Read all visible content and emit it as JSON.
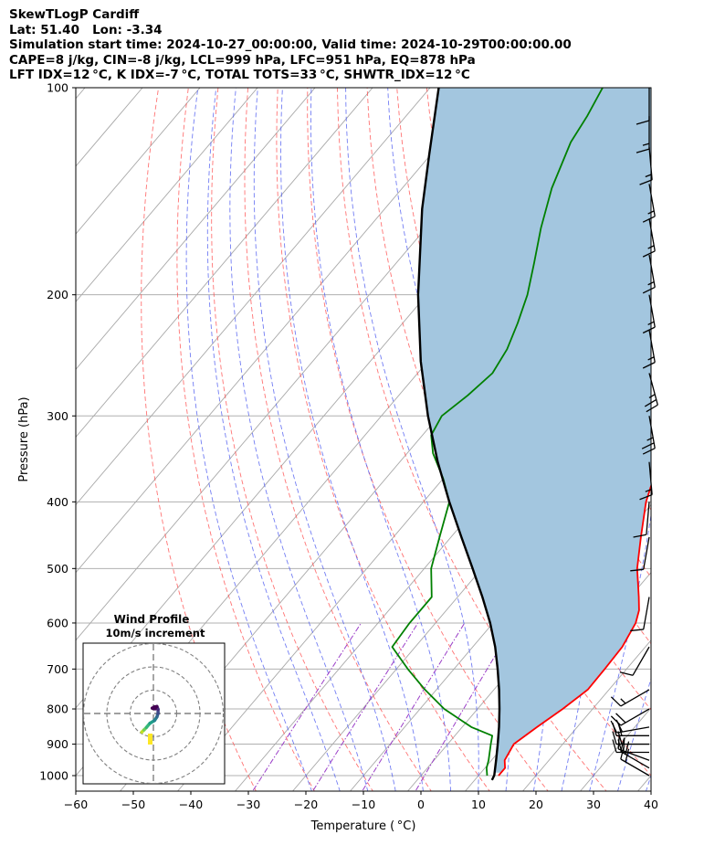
{
  "header": {
    "line1": "SkewTLogP Cardiff",
    "line2": "Lat: 51.40   Lon: -3.34",
    "line3": "Simulation start time: 2024-10-27_00:00:00, Valid time: 2024-10-29T00:00:00.00",
    "line4": "CAPE=8 j/kg, CIN=-8 j/kg, LCL=999 hPa, LFC=951 hPa, EQ=878 hPa",
    "line5": "LFT IDX=12 °C, K IDX=-7 °C, TOTAL TOTS=33 °C, SHWTR_IDX=12 °C"
  },
  "chart_data": {
    "type": "skew-t log-p",
    "xlabel": "Temperature ( °C)",
    "ylabel": "Pressure (hPa)",
    "xlim": [
      -60,
      40
    ],
    "ylim": [
      1050,
      100
    ],
    "x_ticks": [
      "−60",
      "−50",
      "−40",
      "−30",
      "−20",
      "−10",
      "0",
      "10",
      "20",
      "30",
      "40"
    ],
    "y_ticks": [
      1000,
      900,
      800,
      700,
      600,
      500,
      400,
      300,
      200,
      100
    ],
    "grid": true,
    "series": [
      {
        "role": "temperature",
        "color": "#ff0000",
        "points": [
          [
            1000,
            13.5
          ],
          [
            975,
            13.5
          ],
          [
            950,
            12.3
          ],
          [
            900,
            11.5
          ],
          [
            850,
            13.0
          ],
          [
            800,
            14.8
          ],
          [
            750,
            16.3
          ],
          [
            700,
            16.2
          ],
          [
            650,
            16.0
          ],
          [
            600,
            14.8
          ],
          [
            575,
            13.5
          ],
          [
            550,
            11.5
          ],
          [
            500,
            7.0
          ],
          [
            450,
            3.0
          ],
          [
            400,
            -1.3
          ],
          [
            350,
            -5.0
          ],
          [
            320,
            -7.8
          ],
          [
            300,
            -10.0
          ],
          [
            270,
            -13.8
          ],
          [
            250,
            -17.0
          ],
          [
            230,
            -19.0
          ],
          [
            210,
            -21.0
          ],
          [
            200,
            -22.5
          ],
          [
            190,
            -24.0
          ],
          [
            180,
            -26.0
          ],
          [
            170,
            -28.0
          ],
          [
            160,
            -31.0
          ],
          [
            150,
            -35.0
          ],
          [
            140,
            -38.0
          ],
          [
            125,
            -43.0
          ],
          [
            110,
            -48.5
          ],
          [
            100,
            -52.3
          ]
        ]
      },
      {
        "role": "dewpoint",
        "color": "#008000",
        "points": [
          [
            1000,
            11.5
          ],
          [
            975,
            10.3
          ],
          [
            950,
            9.5
          ],
          [
            900,
            7.5
          ],
          [
            875,
            6.5
          ],
          [
            850,
            1.6
          ],
          [
            800,
            -5.8
          ],
          [
            750,
            -12.0
          ],
          [
            700,
            -18.0
          ],
          [
            650,
            -24.0
          ],
          [
            600,
            -24.5
          ],
          [
            550,
            -24.5
          ],
          [
            500,
            -28.8
          ],
          [
            450,
            -32.0
          ],
          [
            400,
            -35.5
          ],
          [
            370,
            -40.0
          ],
          [
            340,
            -45.5
          ],
          [
            320,
            -48.5
          ],
          [
            300,
            -49.5
          ],
          [
            280,
            -48.0
          ],
          [
            260,
            -47.0
          ],
          [
            240,
            -48.0
          ],
          [
            220,
            -50.0
          ],
          [
            200,
            -52.5
          ],
          [
            180,
            -56.0
          ],
          [
            160,
            -60.0
          ],
          [
            140,
            -64.0
          ],
          [
            120,
            -67.5
          ],
          [
            110,
            -68.5
          ],
          [
            100,
            -70.0
          ]
        ]
      },
      {
        "role": "parcel",
        "color": "#000000",
        "points": [
          [
            1015,
            13.0
          ],
          [
            999,
            12.7
          ],
          [
            950,
            10.8
          ],
          [
            900,
            8.7
          ],
          [
            850,
            6.4
          ],
          [
            800,
            3.8
          ],
          [
            750,
            0.9
          ],
          [
            700,
            -2.4
          ],
          [
            650,
            -6.1
          ],
          [
            600,
            -10.5
          ],
          [
            550,
            -15.7
          ],
          [
            500,
            -21.6
          ],
          [
            450,
            -28.2
          ],
          [
            400,
            -35.5
          ],
          [
            350,
            -43.4
          ],
          [
            300,
            -51.9
          ],
          [
            250,
            -61.2
          ],
          [
            200,
            -71.5
          ],
          [
            150,
            -83.5
          ],
          [
            125,
            -90.3
          ],
          [
            100,
            -98.5
          ]
        ]
      }
    ],
    "shading": {
      "between": [
        "parcel",
        "temperature"
      ],
      "color": "#a3c6df"
    },
    "background_lines": [
      "dry adiabats (red dashed)",
      "moist adiabats (blue dashed)",
      "mixing ratio lines (purple dash-dot)",
      "isotherms (gray)"
    ],
    "wind_barbs": [
      {
        "p": 1000,
        "spd": 20,
        "dir": 300
      },
      {
        "p": 975,
        "spd": 20,
        "dir": 300
      },
      {
        "p": 950,
        "spd": 20,
        "dir": 290
      },
      {
        "p": 925,
        "spd": 20,
        "dir": 270
      },
      {
        "p": 900,
        "spd": 20,
        "dir": 270
      },
      {
        "p": 875,
        "spd": 20,
        "dir": 270
      },
      {
        "p": 850,
        "spd": 20,
        "dir": 260
      },
      {
        "p": 800,
        "spd": 20,
        "dir": 240
      },
      {
        "p": 750,
        "spd": 15,
        "dir": 240
      },
      {
        "p": 650,
        "spd": 10,
        "dir": 210
      },
      {
        "p": 550,
        "spd": 10,
        "dir": 190
      },
      {
        "p": 450,
        "spd": 10,
        "dir": 190
      },
      {
        "p": 400,
        "spd": 10,
        "dir": 185
      },
      {
        "p": 350,
        "spd": 15,
        "dir": 175
      },
      {
        "p": 300,
        "spd": 25,
        "dir": 170
      },
      {
        "p": 260,
        "spd": 25,
        "dir": 165
      },
      {
        "p": 225,
        "spd": 15,
        "dir": 170
      },
      {
        "p": 200,
        "spd": 15,
        "dir": 170
      },
      {
        "p": 175,
        "spd": 15,
        "dir": 170
      },
      {
        "p": 155,
        "spd": 15,
        "dir": 170
      },
      {
        "p": 138,
        "spd": 15,
        "dir": 170
      },
      {
        "p": 122,
        "spd": 15,
        "dir": 175
      },
      {
        "p": 110,
        "spd": 15,
        "dir": 180
      },
      {
        "p": 100,
        "spd": 10,
        "dir": 180
      }
    ],
    "wind_profile_inset": {
      "title": "Wind Profile",
      "subtitle": "10m/s increment",
      "rings_ms": [
        10,
        20,
        30
      ],
      "hodograph_uv": [
        [
          -5.0,
          -8.0
        ],
        [
          -4.0,
          -7.0
        ],
        [
          -3.0,
          -6.0
        ],
        [
          -1.5,
          -4.2
        ],
        [
          0.5,
          -3.0
        ],
        [
          1.5,
          -1.5
        ],
        [
          2.0,
          0.0
        ],
        [
          2.0,
          1.8
        ],
        [
          1.5,
          3.0
        ],
        [
          0.5,
          2.8
        ],
        [
          -0.5,
          2.3
        ],
        [
          0.8,
          2.0
        ]
      ]
    }
  }
}
